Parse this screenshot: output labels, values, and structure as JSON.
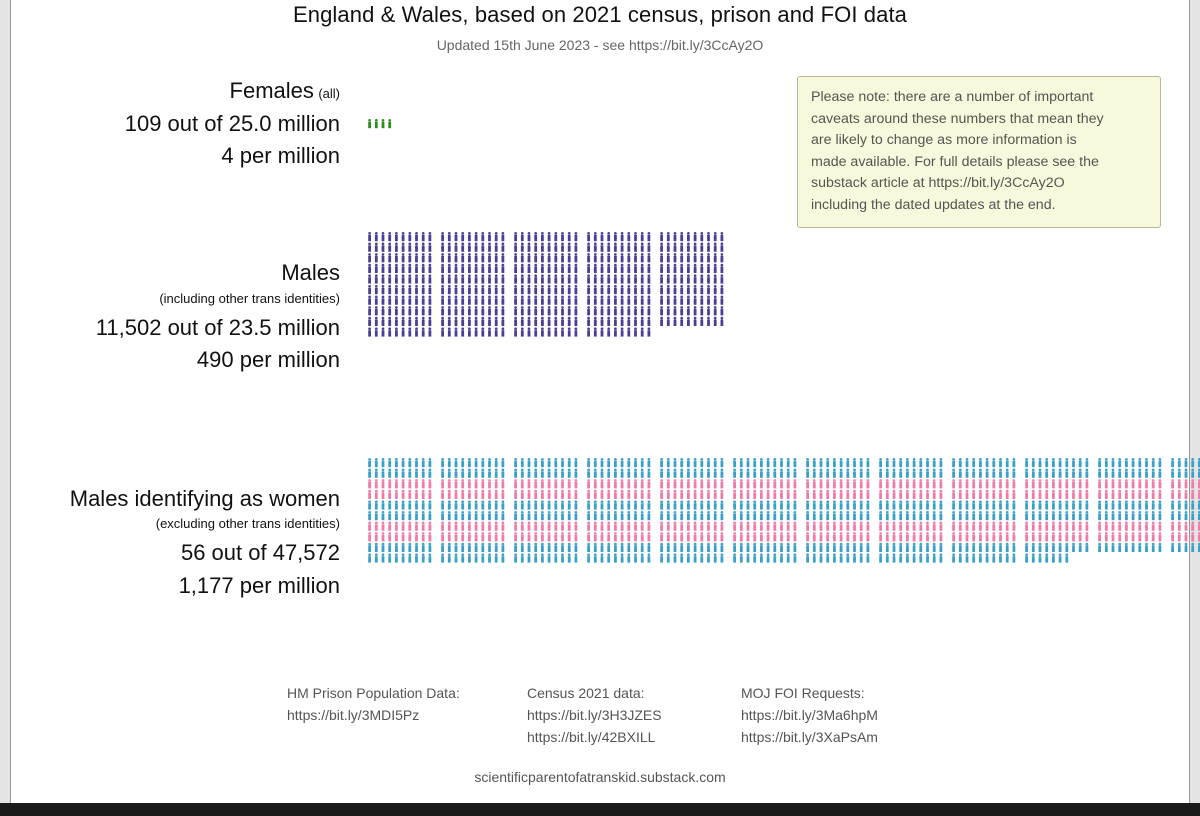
{
  "chart_data": {
    "type": "pictogram",
    "title": "England & Wales, based on 2021 census, prison and FOI data",
    "subtitle": "Updated 15th June 2023 - see https://bit.ly/3CcAy2O",
    "unit": "per million",
    "groups": [
      {
        "name": "Females",
        "qualifier": "(all)",
        "count_text": "109 out of 25.0 million",
        "rate_text": "4 per million",
        "rate_per_million": 4,
        "colors": [
          "#2e8b1f"
        ]
      },
      {
        "name": "Males",
        "qualifier": "(including other trans identities)",
        "count_text": "11,502 out of 23.5 million",
        "rate_text": "490 per million",
        "rate_per_million": 490,
        "colors": [
          "#4a3f96"
        ]
      },
      {
        "name": "Males identifying as women",
        "qualifier": "(excluding other trans identities)",
        "count_text": "56 out of 47,572",
        "rate_text": "1,177 per million",
        "rate_per_million": 1177,
        "colors": [
          "#3aa0c8",
          "#f07aa8"
        ]
      }
    ]
  },
  "note": {
    "lines": [
      "Please note: there are a number of important",
      "caveats around these numbers that mean they",
      "are likely to change as more information is",
      "made available. For full details please see the",
      "substack article at https://bit.ly/3CcAy2O",
      "including the dated updates at the end."
    ]
  },
  "sources": {
    "prison": {
      "label": "HM Prison Population Data:",
      "links": [
        "https://bit.ly/3MDI5Pz"
      ]
    },
    "census": {
      "label": "Census 2021 data:",
      "links": [
        "https://bit.ly/3H3JZES",
        "https://bit.ly/42BXILL"
      ]
    },
    "moj": {
      "label": "MOJ FOI Requests:",
      "links": [
        "https://bit.ly/3Ma6hpM",
        "https://bit.ly/3XaPsAm"
      ]
    }
  },
  "footer": "scientificparentofatranskid.substack.com"
}
